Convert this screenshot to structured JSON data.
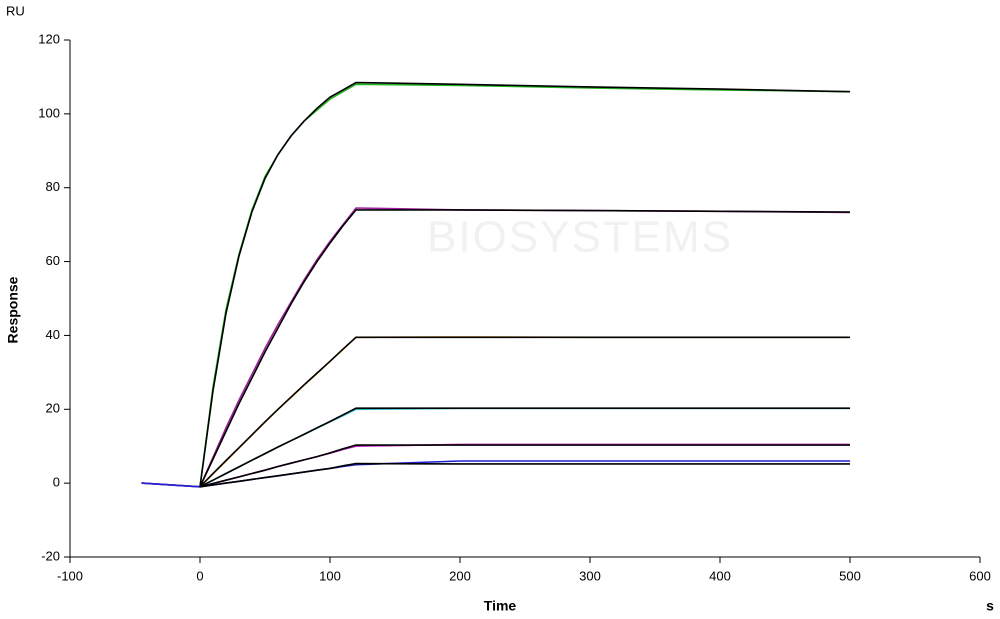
{
  "chart_data": {
    "type": "line",
    "ylabel_top": "RU",
    "ylabel": "Response",
    "xlabel": "Time",
    "xunit": "s",
    "watermark": "BIOSYSTEMS",
    "x": [
      -45,
      0,
      10,
      20,
      30,
      40,
      50,
      60,
      70,
      80,
      90,
      100,
      110,
      120,
      200,
      300,
      400,
      500
    ],
    "series": [
      {
        "color": "#22b422",
        "values": [
          0,
          -1,
          26,
          47,
          62,
          74,
          83,
          89,
          94,
          98,
          101,
          104,
          106,
          108,
          107.7,
          107,
          106.5,
          106
        ]
      },
      {
        "color": "#a020a0",
        "values": [
          0,
          -1,
          7,
          15,
          22.5,
          29.5,
          36.5,
          43,
          49,
          55,
          60.5,
          65.5,
          70,
          74.5,
          74,
          73.8,
          73.6,
          73.3
        ]
      },
      {
        "color": "#e8a020",
        "values": [
          0,
          -1,
          2.5,
          6,
          9.5,
          13,
          16.5,
          20,
          23.2,
          26.5,
          29.7,
          33,
          36.2,
          39.5,
          39.6,
          39.5,
          39.5,
          39.5
        ]
      },
      {
        "color": "#20b8c8",
        "values": [
          0,
          -1,
          0.8,
          2.6,
          4.4,
          6.2,
          8,
          9.8,
          11.5,
          13.2,
          14.9,
          16.6,
          18.3,
          20,
          20.2,
          20.2,
          20.2,
          20.2
        ]
      },
      {
        "color": "#c020c0",
        "values": [
          0,
          -1,
          -0.1,
          0.8,
          1.7,
          2.6,
          3.5,
          4.5,
          5.4,
          6.3,
          7.2,
          8.1,
          9.1,
          10,
          10.5,
          10.5,
          10.5,
          10.5
        ]
      },
      {
        "color": "#2020d0",
        "values": [
          0,
          -1,
          -0.5,
          0,
          0.5,
          1,
          1.5,
          2,
          2.5,
          3,
          3.5,
          4,
          4.5,
          5,
          6,
          6,
          6,
          6
        ]
      },
      {
        "color": "#000000",
        "values": [
          null,
          -1,
          25,
          46,
          61.5,
          73.5,
          82.5,
          89,
          94,
          98,
          101.5,
          104.5,
          106.5,
          108.5,
          108,
          107.3,
          106.7,
          106
        ]
      },
      {
        "color": "#000000",
        "values": [
          null,
          -1,
          6.5,
          14,
          21.5,
          28.5,
          35.5,
          42,
          48.5,
          54.5,
          60,
          65,
          69.7,
          74,
          74,
          73.8,
          73.6,
          73.4
        ]
      },
      {
        "color": "#000000",
        "values": [
          null,
          -1,
          2.6,
          6.1,
          9.6,
          13.1,
          16.6,
          20,
          23.3,
          26.6,
          29.8,
          33,
          36.3,
          39.5,
          39.5,
          39.5,
          39.5,
          39.5
        ]
      },
      {
        "color": "#000000",
        "values": [
          null,
          -1,
          0.8,
          2.6,
          4.4,
          6.2,
          8,
          9.8,
          11.5,
          13.2,
          15,
          16.7,
          18.5,
          20.3,
          20.3,
          20.3,
          20.3,
          20.3
        ]
      },
      {
        "color": "#000000",
        "values": [
          null,
          -1,
          -0.1,
          0.8,
          1.7,
          2.6,
          3.5,
          4.5,
          5.4,
          6.3,
          7.2,
          8.2,
          9.3,
          10.3,
          10.3,
          10.3,
          10.3,
          10.3
        ]
      },
      {
        "color": "#000000",
        "values": [
          null,
          -1,
          -0.5,
          0,
          0.5,
          1,
          1.5,
          2,
          2.5,
          3,
          3.5,
          4,
          4.7,
          5.3,
          5.2,
          5.2,
          5.2,
          5.2
        ]
      }
    ],
    "xlim": [
      -100,
      600
    ],
    "xticks": [
      -100,
      0,
      100,
      200,
      300,
      400,
      500,
      600
    ],
    "ylim": [
      -20,
      120
    ],
    "yticks": [
      -20,
      0,
      20,
      40,
      60,
      80,
      100,
      120
    ]
  }
}
